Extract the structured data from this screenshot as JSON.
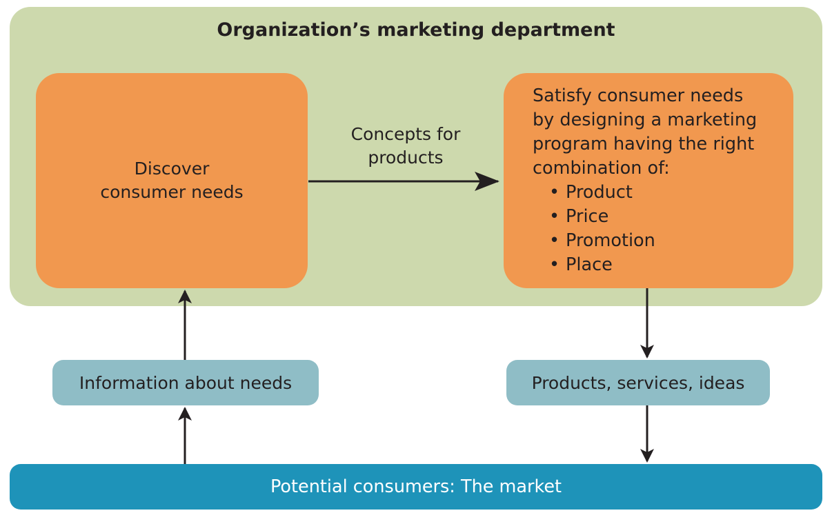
{
  "department": {
    "title": "Organization’s marketing department"
  },
  "discover": {
    "lines": [
      "Discover",
      "consumer needs"
    ]
  },
  "concepts": {
    "lines": [
      "Concepts for",
      "products"
    ]
  },
  "satisfy": {
    "lines": [
      "Satisfy consumer needs",
      "by designing a marketing",
      "program having the right",
      "combination of:"
    ],
    "bullets": [
      "Product",
      "Price",
      "Promotion",
      "Place"
    ]
  },
  "information": {
    "label": "Information about needs"
  },
  "products": {
    "label": "Products, services, ideas"
  },
  "market": {
    "label": "Potential consumers: The market"
  },
  "colors": {
    "department_bg": "#cdd9ad",
    "process_box": "#f1984f",
    "flow_box": "#8fbdc6",
    "market_bar": "#1e93b9",
    "arrow": "#231f20"
  }
}
